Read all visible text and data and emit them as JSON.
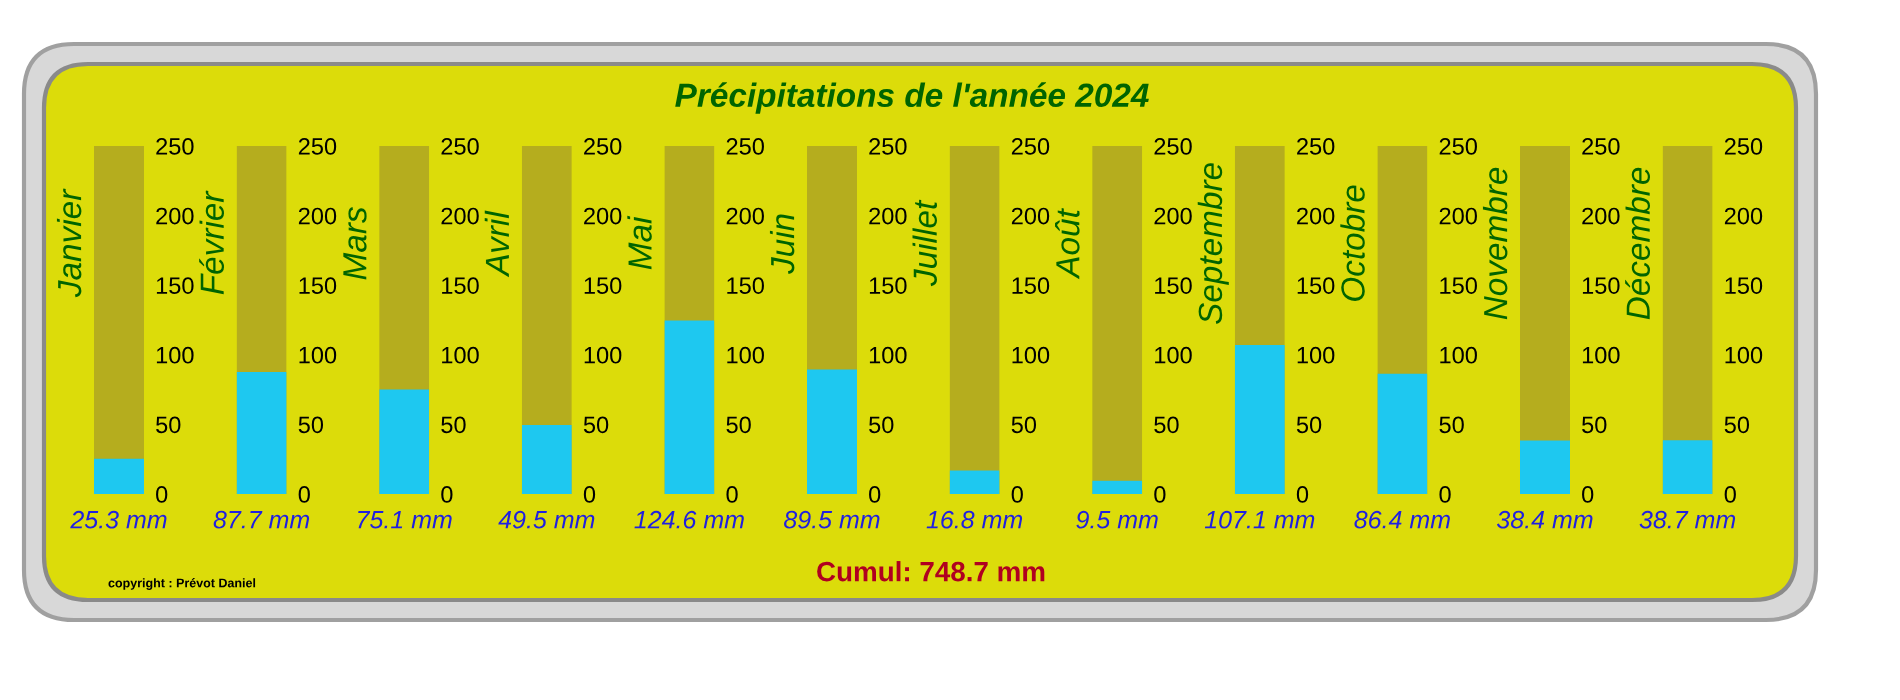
{
  "chart_data": [
    {
      "type": "bar",
      "annotations": [
        "copyright : Prévot Daniel"
      ],
      "categories": [
        "Janvier"
      ],
      "values": [
        25.3
      ],
      "value_labels": [
        "25.3 mm"
      ],
      "color": "#1ec8f0",
      "ylim": [
        0,
        250
      ],
      "yticks": [
        0,
        50,
        100,
        150,
        200,
        250
      ],
      "bands": [
        {
          "axis": "y",
          "from": 0,
          "to": 250,
          "color": "#b5ad1e"
        }
      ]
    },
    {
      "type": "bar",
      "categories": [
        "Février"
      ],
      "values": [
        87.7
      ],
      "value_labels": [
        "87.7 mm"
      ],
      "color": "#1ec8f0",
      "ylim": [
        0,
        250
      ],
      "yticks": [
        0,
        50,
        100,
        150,
        200,
        250
      ],
      "bands": [
        {
          "axis": "y",
          "from": 0,
          "to": 250,
          "color": "#b5ad1e"
        }
      ]
    },
    {
      "type": "bar",
      "categories": [
        "Mars"
      ],
      "values": [
        75.1
      ],
      "value_labels": [
        "75.1 mm"
      ],
      "color": "#1ec8f0",
      "ylim": [
        0,
        250
      ],
      "yticks": [
        0,
        50,
        100,
        150,
        200,
        250
      ],
      "bands": [
        {
          "axis": "y",
          "from": 0,
          "to": 250,
          "color": "#b5ad1e"
        }
      ]
    },
    {
      "type": "bar",
      "categories": [
        "Avril"
      ],
      "values": [
        49.5
      ],
      "value_labels": [
        "49.5 mm"
      ],
      "color": "#1ec8f0",
      "ylim": [
        0,
        250
      ],
      "yticks": [
        0,
        50,
        100,
        150,
        200,
        250
      ],
      "bands": [
        {
          "axis": "y",
          "from": 0,
          "to": 250,
          "color": "#b5ad1e"
        }
      ]
    },
    {
      "type": "bar",
      "categories": [
        "Mai"
      ],
      "values": [
        124.6
      ],
      "value_labels": [
        "124.6 mm"
      ],
      "color": "#1ec8f0",
      "ylim": [
        0,
        250
      ],
      "yticks": [
        0,
        50,
        100,
        150,
        200,
        250
      ],
      "bands": [
        {
          "axis": "y",
          "from": 0,
          "to": 250,
          "color": "#b5ad1e"
        }
      ]
    },
    {
      "type": "bar",
      "title": "Précipitations de l'année 2024",
      "annotations": [
        "Cumul: 748.7 mm"
      ],
      "categories": [
        "Juin"
      ],
      "values": [
        89.5
      ],
      "value_labels": [
        "89.5 mm"
      ],
      "color": "#1ec8f0",
      "ylim": [
        0,
        250
      ],
      "yticks": [
        0,
        50,
        100,
        150,
        200,
        250
      ],
      "bands": [
        {
          "axis": "y",
          "from": 0,
          "to": 250,
          "color": "#b5ad1e"
        }
      ]
    },
    {
      "type": "bar",
      "categories": [
        "Juillet"
      ],
      "values": [
        16.8
      ],
      "value_labels": [
        "16.8 mm"
      ],
      "color": "#1ec8f0",
      "ylim": [
        0,
        250
      ],
      "yticks": [
        0,
        50,
        100,
        150,
        200,
        250
      ],
      "bands": [
        {
          "axis": "y",
          "from": 0,
          "to": 250,
          "color": "#b5ad1e"
        }
      ]
    },
    {
      "type": "bar",
      "categories": [
        "Août"
      ],
      "values": [
        9.5
      ],
      "value_labels": [
        "9.5 mm"
      ],
      "color": "#1ec8f0",
      "ylim": [
        0,
        250
      ],
      "yticks": [
        0,
        50,
        100,
        150,
        200,
        250
      ],
      "bands": [
        {
          "axis": "y",
          "from": 0,
          "to": 250,
          "color": "#b5ad1e"
        }
      ]
    },
    {
      "type": "bar",
      "categories": [
        "Septembre"
      ],
      "values": [
        107.1
      ],
      "value_labels": [
        "107.1 mm"
      ],
      "color": "#1ec8f0",
      "ylim": [
        0,
        250
      ],
      "yticks": [
        0,
        50,
        100,
        150,
        200,
        250
      ],
      "bands": [
        {
          "axis": "y",
          "from": 0,
          "to": 250,
          "color": "#b5ad1e"
        }
      ]
    },
    {
      "type": "bar",
      "categories": [
        "Octobre"
      ],
      "values": [
        86.4
      ],
      "value_labels": [
        "86.4 mm"
      ],
      "color": "#1ec8f0",
      "ylim": [
        0,
        250
      ],
      "yticks": [
        0,
        50,
        100,
        150,
        200,
        250
      ],
      "bands": [
        {
          "axis": "y",
          "from": 0,
          "to": 250,
          "color": "#b5ad1e"
        }
      ]
    },
    {
      "type": "bar",
      "categories": [
        "Novembre"
      ],
      "values": [
        38.4
      ],
      "value_labels": [
        "38.4 mm"
      ],
      "color": "#1ec8f0",
      "ylim": [
        0,
        250
      ],
      "yticks": [
        0,
        50,
        100,
        150,
        200,
        250
      ],
      "bands": [
        {
          "axis": "y",
          "from": 0,
          "to": 250,
          "color": "#b5ad1e"
        }
      ]
    },
    {
      "type": "bar",
      "categories": [
        "Décembre"
      ],
      "values": [
        38.7
      ],
      "value_labels": [
        "38.7 mm"
      ],
      "color": "#1ec8f0",
      "ylim": [
        0,
        250
      ],
      "yticks": [
        0,
        50,
        100,
        150,
        200,
        250
      ],
      "bands": [
        {
          "axis": "y",
          "from": 0,
          "to": 250,
          "color": "#b5ad1e"
        }
      ]
    }
  ]
}
